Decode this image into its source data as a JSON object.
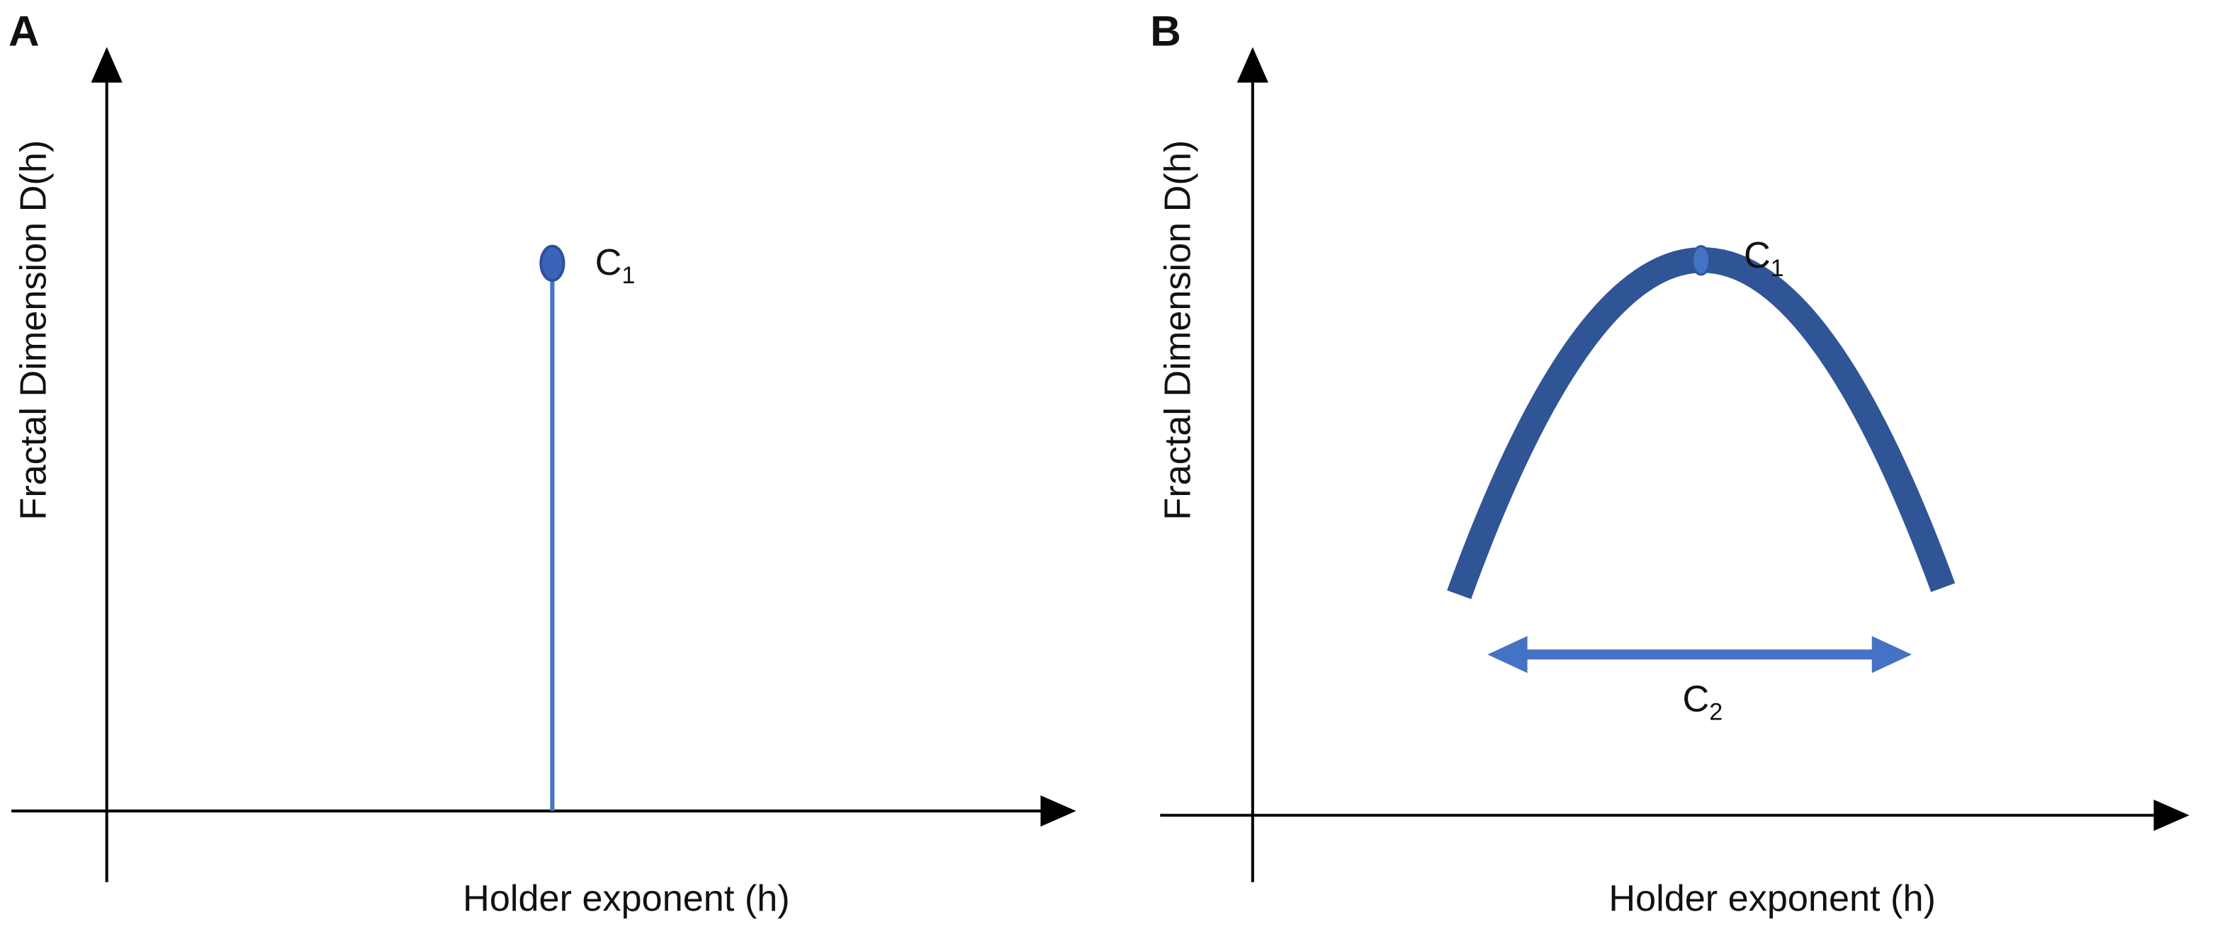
{
  "panels": [
    {
      "label": "A",
      "y_axis_label": "Fractal Dimension D(h)",
      "x_axis_label": "Holder exponent (h)",
      "annotations": [
        {
          "letter": "C",
          "subscript": "1"
        }
      ]
    },
    {
      "label": "B",
      "y_axis_label": "Fractal Dimension D(h)",
      "x_axis_label": "Holder exponent (h)",
      "annotations": [
        {
          "letter": "C",
          "subscript": "1"
        },
        {
          "letter": "C",
          "subscript": "2"
        }
      ]
    }
  ]
}
